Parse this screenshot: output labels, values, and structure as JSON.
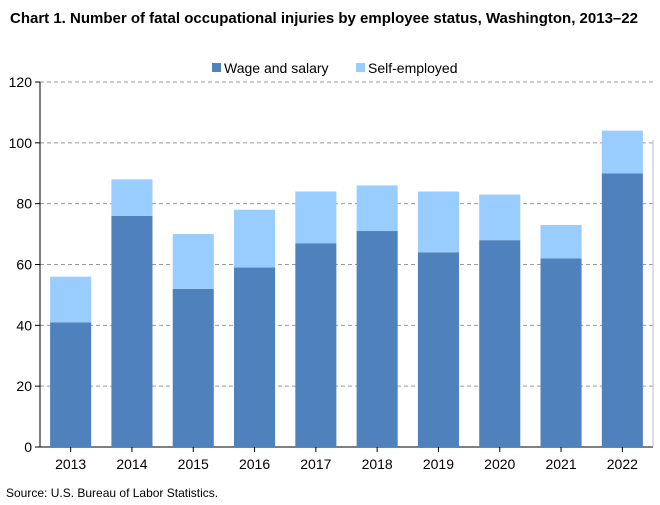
{
  "chart_data": {
    "type": "bar",
    "stacked": true,
    "title": "Chart 1. Number of fatal occupational injuries by employee status, Washington, 2013–22",
    "categories": [
      "2013",
      "2014",
      "2015",
      "2016",
      "2017",
      "2018",
      "2019",
      "2020",
      "2021",
      "2022"
    ],
    "series": [
      {
        "name": "Wage and salary",
        "color": "#4f81bd",
        "values": [
          41,
          76,
          52,
          59,
          67,
          71,
          64,
          68,
          62,
          90
        ]
      },
      {
        "name": "Self-employed",
        "color": "#99ccff",
        "values": [
          15,
          12,
          18,
          19,
          17,
          15,
          20,
          15,
          11,
          14
        ]
      }
    ],
    "ylim": [
      0,
      120
    ],
    "yticks": [
      0,
      20,
      40,
      60,
      80,
      100,
      120
    ],
    "grid": true,
    "legend_position": "top-center",
    "source": "Source: U.S. Bureau of Labor Statistics."
  }
}
